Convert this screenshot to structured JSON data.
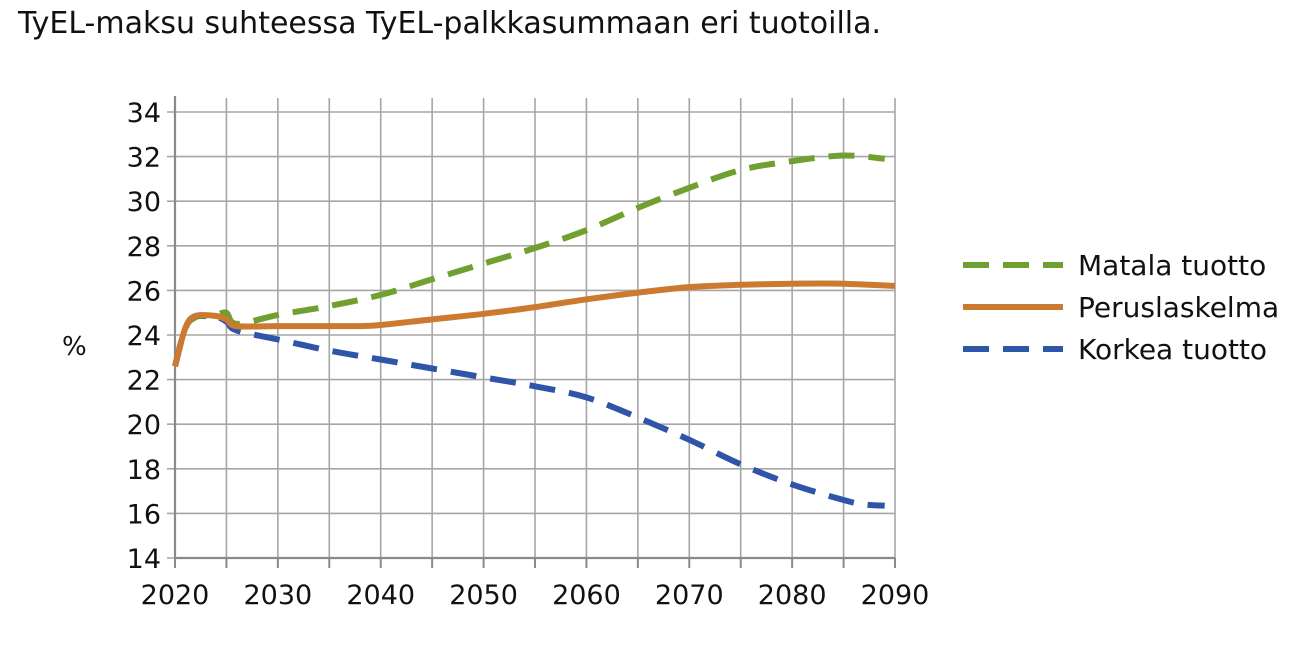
{
  "chart_data": {
    "type": "line",
    "title": "TyEL-maksu suhteessa TyEL-palkkasummaan eri tuotoilla.",
    "ylabel": "%",
    "xlabel": "",
    "xlim": [
      2020,
      2090
    ],
    "ylim": [
      14,
      34
    ],
    "xticks": [
      2020,
      2030,
      2040,
      2050,
      2060,
      2070,
      2080,
      2090
    ],
    "yticks": [
      14,
      16,
      18,
      20,
      22,
      24,
      26,
      28,
      30,
      32,
      34
    ],
    "x_minor_gridlines_every": 5,
    "grid": true,
    "legend_position": "right",
    "series": [
      {
        "name": "Matala tuotto",
        "color": "#70a030",
        "style": "dashed",
        "points": [
          [
            2020,
            22.6
          ],
          [
            2021,
            24.3
          ],
          [
            2022,
            24.8
          ],
          [
            2023,
            24.85
          ],
          [
            2024,
            24.9
          ],
          [
            2025,
            25.0
          ],
          [
            2026,
            24.5
          ],
          [
            2030,
            24.9
          ],
          [
            2035,
            25.3
          ],
          [
            2040,
            25.8
          ],
          [
            2045,
            26.5
          ],
          [
            2050,
            27.2
          ],
          [
            2055,
            27.9
          ],
          [
            2060,
            28.7
          ],
          [
            2065,
            29.7
          ],
          [
            2070,
            30.6
          ],
          [
            2075,
            31.4
          ],
          [
            2080,
            31.8
          ],
          [
            2085,
            32.05
          ],
          [
            2089,
            31.9
          ]
        ]
      },
      {
        "name": "Peruslaskelma",
        "color": "#cc7a30",
        "style": "solid",
        "points": [
          [
            2020,
            22.6
          ],
          [
            2021,
            24.3
          ],
          [
            2022,
            24.85
          ],
          [
            2024,
            24.85
          ],
          [
            2025,
            24.7
          ],
          [
            2026,
            24.4
          ],
          [
            2030,
            24.4
          ],
          [
            2035,
            24.4
          ],
          [
            2038,
            24.4
          ],
          [
            2040,
            24.45
          ],
          [
            2045,
            24.7
          ],
          [
            2050,
            24.95
          ],
          [
            2055,
            25.25
          ],
          [
            2060,
            25.6
          ],
          [
            2065,
            25.9
          ],
          [
            2070,
            26.15
          ],
          [
            2075,
            26.25
          ],
          [
            2080,
            26.3
          ],
          [
            2085,
            26.3
          ],
          [
            2090,
            26.2
          ]
        ]
      },
      {
        "name": "Korkea tuotto",
        "color": "#2f55a8",
        "style": "dashed",
        "points": [
          [
            2020,
            22.6
          ],
          [
            2021,
            24.3
          ],
          [
            2022,
            24.85
          ],
          [
            2024,
            24.8
          ],
          [
            2025,
            24.6
          ],
          [
            2026,
            24.2
          ],
          [
            2030,
            23.8
          ],
          [
            2035,
            23.3
          ],
          [
            2040,
            22.9
          ],
          [
            2045,
            22.5
          ],
          [
            2050,
            22.1
          ],
          [
            2055,
            21.7
          ],
          [
            2060,
            21.2
          ],
          [
            2065,
            20.3
          ],
          [
            2070,
            19.3
          ],
          [
            2075,
            18.2
          ],
          [
            2080,
            17.3
          ],
          [
            2085,
            16.6
          ],
          [
            2087,
            16.4
          ],
          [
            2089,
            16.35
          ]
        ]
      }
    ]
  }
}
